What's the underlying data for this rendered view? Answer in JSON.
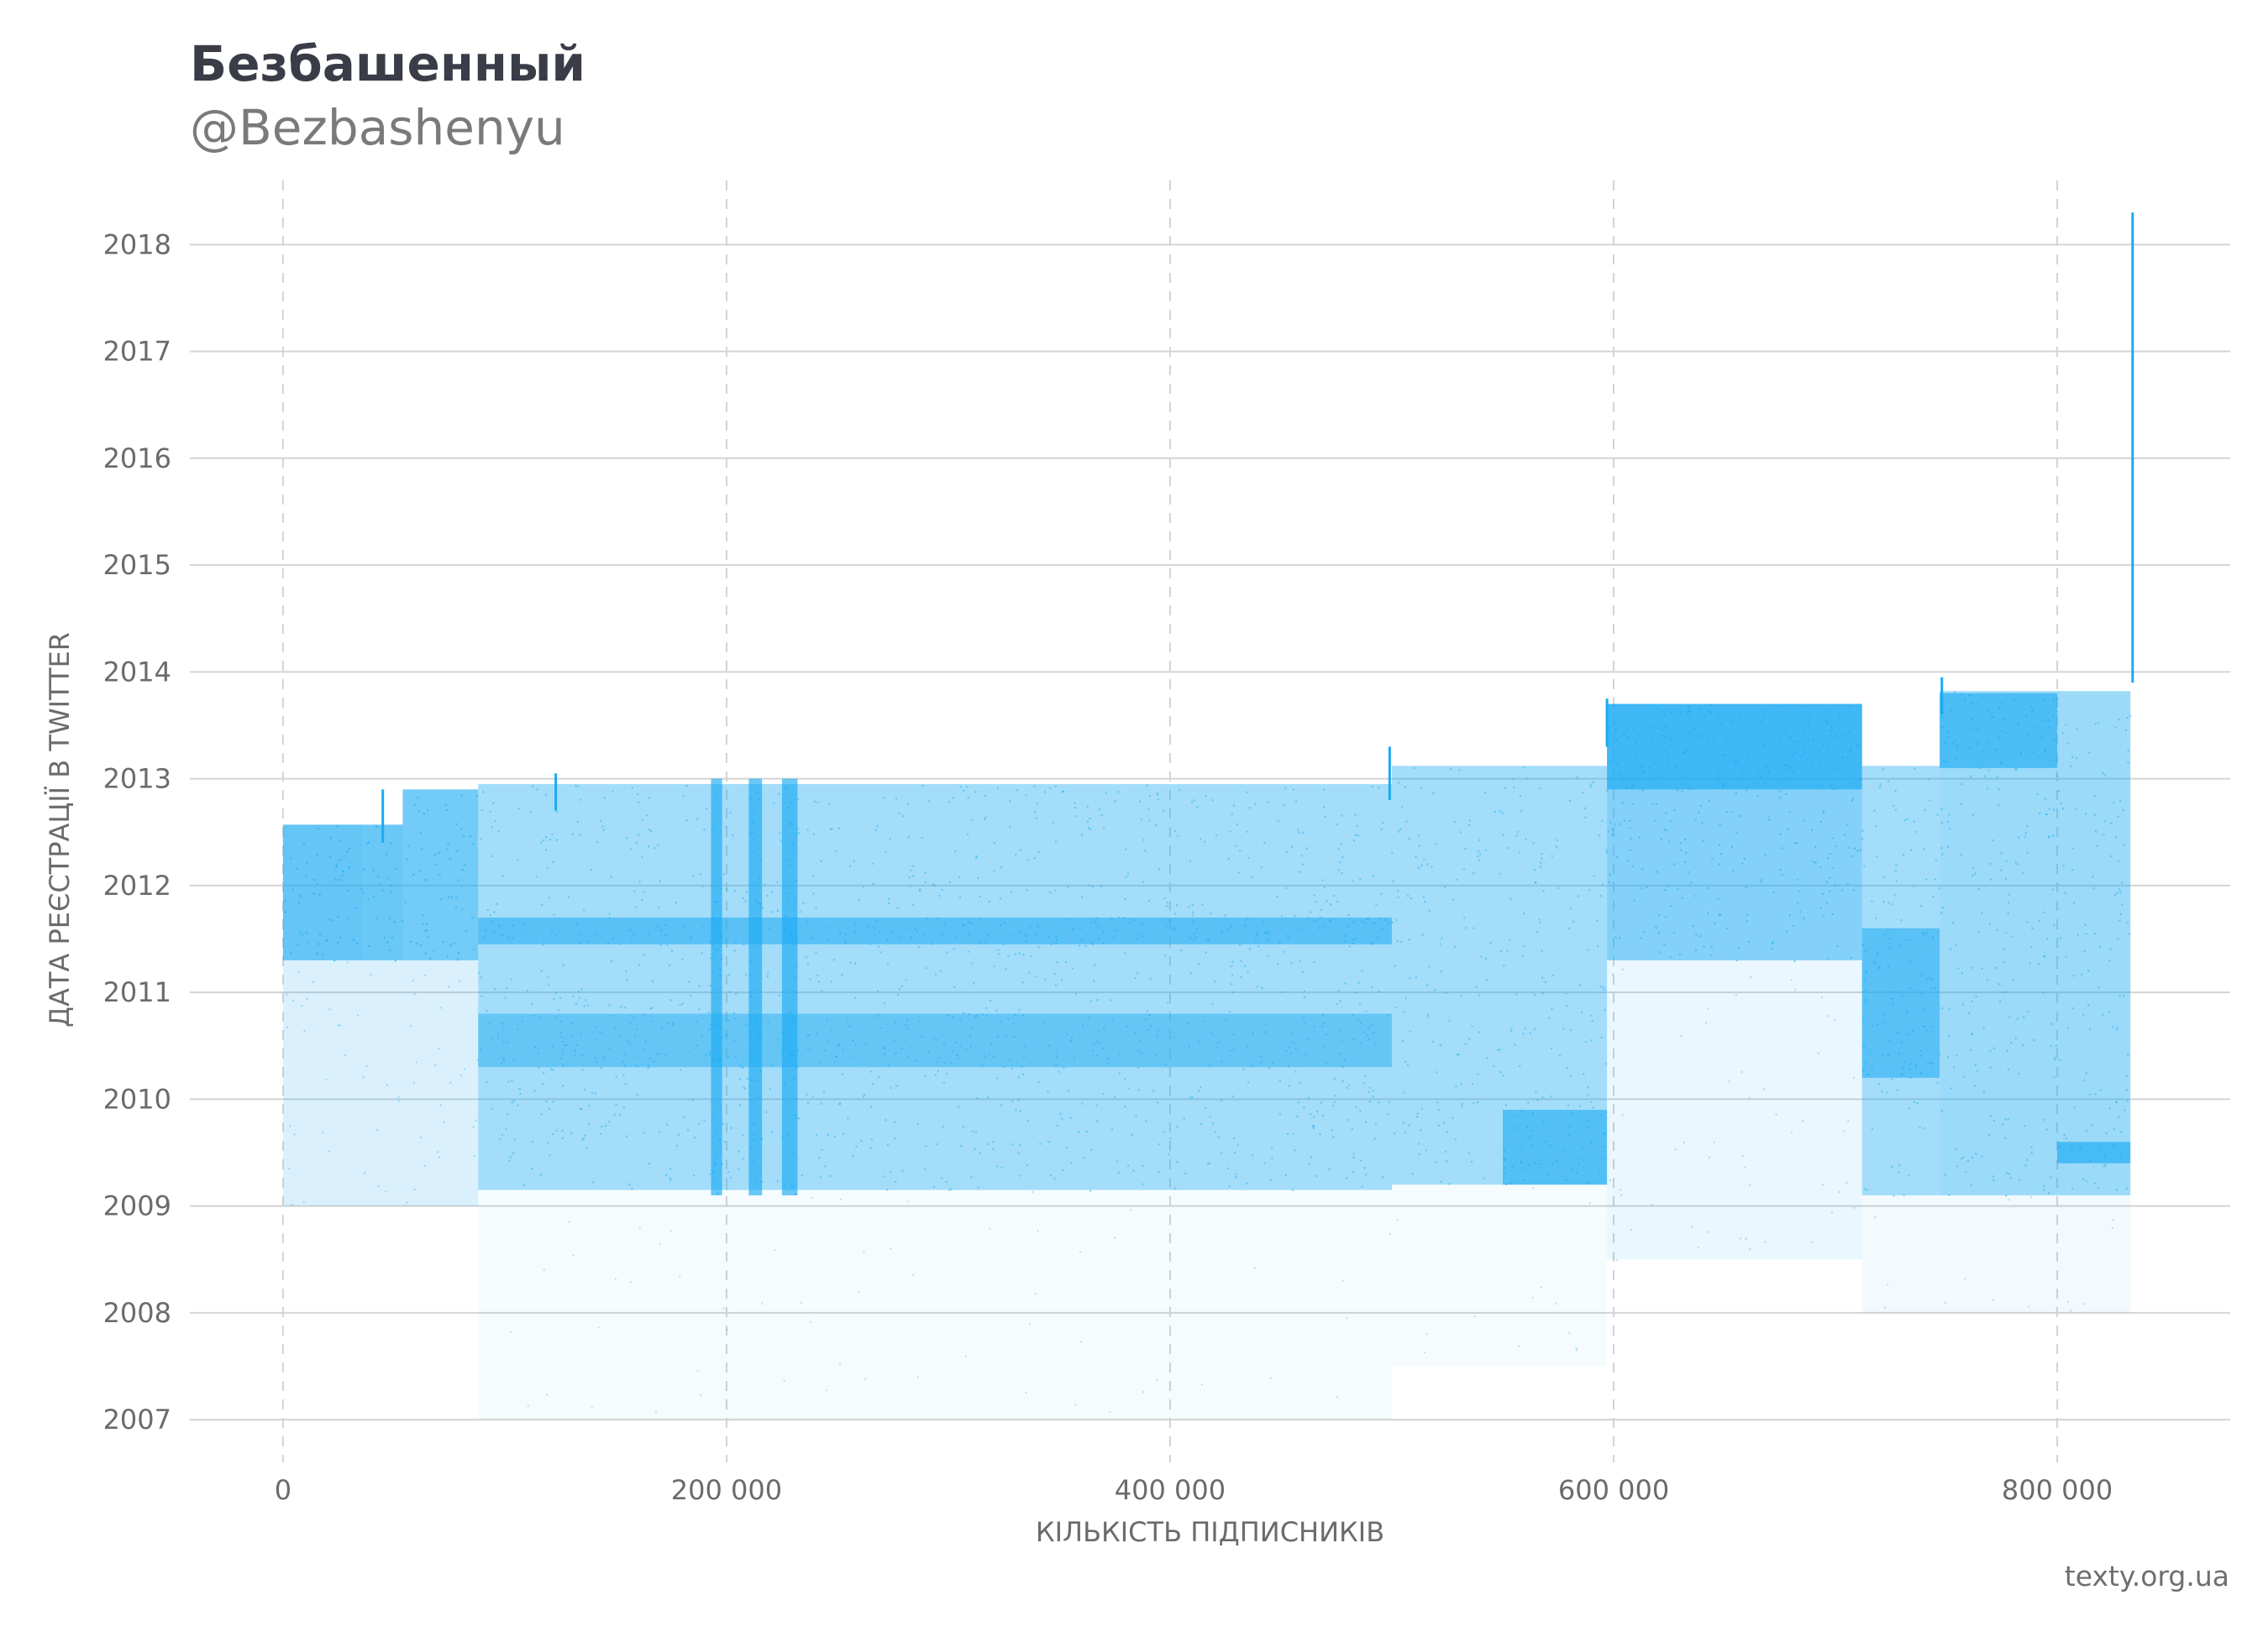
{
  "header": {
    "title": "Безбашенный",
    "subtitle": "@Bezbashenyu"
  },
  "footer": {
    "credit": "texty.org.ua"
  },
  "colors": {
    "points": "#1aaaf2",
    "grid": "#d4d4d4",
    "text": "#6b6b6b",
    "title": "#3a3d48"
  },
  "chart_data": {
    "type": "scatter",
    "title": "Безбашенный",
    "subtitle": "@Bezbashenyu",
    "xlabel": "КІЛЬКІСТЬ ПІДПИСНИКІВ",
    "ylabel": "ДАТА РЕЄСТРАЦІЇ В TWITTER",
    "xlim": [
      -42000,
      878000
    ],
    "ylim": [
      2006.6,
      2018.6
    ],
    "x_ticks": [
      0,
      200000,
      400000,
      600000,
      800000
    ],
    "x_tick_labels": [
      "0",
      "200 000",
      "400 000",
      "600 000",
      "800 000"
    ],
    "y_ticks": [
      2007,
      2008,
      2009,
      2010,
      2011,
      2012,
      2013,
      2014,
      2015,
      2016,
      2017,
      2018
    ],
    "y_tick_labels": [
      "2007",
      "2008",
      "2009",
      "2010",
      "2011",
      "2012",
      "2013",
      "2014",
      "2015",
      "2016",
      "2017",
      "2018"
    ],
    "grid": {
      "x": "dashed",
      "y": "solid"
    },
    "legend": "none",
    "density_regions": [
      {
        "x": [
          0,
          36000
        ],
        "y": [
          2011.3,
          2012.57
        ],
        "density": 0.95
      },
      {
        "x": [
          36000,
          54000
        ],
        "y": [
          2011.3,
          2012.57
        ],
        "density": 0.9
      },
      {
        "x": [
          54000,
          88000
        ],
        "y": [
          2011.3,
          2012.9
        ],
        "density": 0.85
      },
      {
        "x": [
          0,
          88000
        ],
        "y": [
          2009.0,
          2011.3
        ],
        "density": 0.22
      },
      {
        "x": [
          88000,
          500000
        ],
        "y": [
          2009.15,
          2012.95
        ],
        "density": 0.55
      },
      {
        "x": [
          88000,
          500000
        ],
        "y": [
          2011.45,
          2011.7
        ],
        "density": 0.75
      },
      {
        "x": [
          88000,
          500000
        ],
        "y": [
          2010.3,
          2010.8
        ],
        "density": 0.62
      },
      {
        "x": [
          88000,
          500000
        ],
        "y": [
          2007.0,
          2009.15
        ],
        "density": 0.05
      },
      {
        "x": [
          193000,
          198000
        ],
        "y": [
          2009.1,
          2013.0
        ],
        "density": 0.9
      },
      {
        "x": [
          210000,
          216000
        ],
        "y": [
          2009.1,
          2013.0
        ],
        "density": 0.9
      },
      {
        "x": [
          225000,
          232000
        ],
        "y": [
          2009.1,
          2013.0
        ],
        "density": 0.9
      },
      {
        "x": [
          500000,
          597000
        ],
        "y": [
          2009.2,
          2013.12
        ],
        "density": 0.55
      },
      {
        "x": [
          550000,
          597000
        ],
        "y": [
          2009.2,
          2009.9
        ],
        "density": 0.8
      },
      {
        "x": [
          500000,
          597000
        ],
        "y": [
          2007.5,
          2009.2
        ],
        "density": 0.06
      },
      {
        "x": [
          597000,
          712000
        ],
        "y": [
          2011.3,
          2013.7
        ],
        "density": 0.75
      },
      {
        "x": [
          597000,
          712000
        ],
        "y": [
          2012.9,
          2013.7
        ],
        "density": 0.9
      },
      {
        "x": [
          597000,
          712000
        ],
        "y": [
          2008.5,
          2011.3
        ],
        "density": 0.12
      },
      {
        "x": [
          712000,
          747000
        ],
        "y": [
          2009.1,
          2013.12
        ],
        "density": 0.55
      },
      {
        "x": [
          712000,
          747000
        ],
        "y": [
          2010.2,
          2011.6
        ],
        "density": 0.75
      },
      {
        "x": [
          747000,
          833000
        ],
        "y": [
          2009.1,
          2013.82
        ],
        "density": 0.6
      },
      {
        "x": [
          747000,
          800000
        ],
        "y": [
          2013.1,
          2013.8
        ],
        "density": 0.85
      },
      {
        "x": [
          800000,
          833000
        ],
        "y": [
          2009.4,
          2009.6
        ],
        "density": 0.9
      },
      {
        "x": [
          712000,
          833000
        ],
        "y": [
          2008.0,
          2009.1
        ],
        "density": 0.08
      }
    ],
    "spikes": [
      {
        "x": 45000,
        "y": [
          2012.4,
          2012.9
        ]
      },
      {
        "x": 123000,
        "y": [
          2012.7,
          2013.05
        ]
      },
      {
        "x": 499000,
        "y": [
          2012.8,
          2013.3
        ]
      },
      {
        "x": 597000,
        "y": [
          2013.3,
          2013.75
        ]
      },
      {
        "x": 748000,
        "y": [
          2013.6,
          2013.95
        ]
      },
      {
        "x": 834000,
        "y": [
          2013.9,
          2018.3
        ]
      }
    ]
  }
}
